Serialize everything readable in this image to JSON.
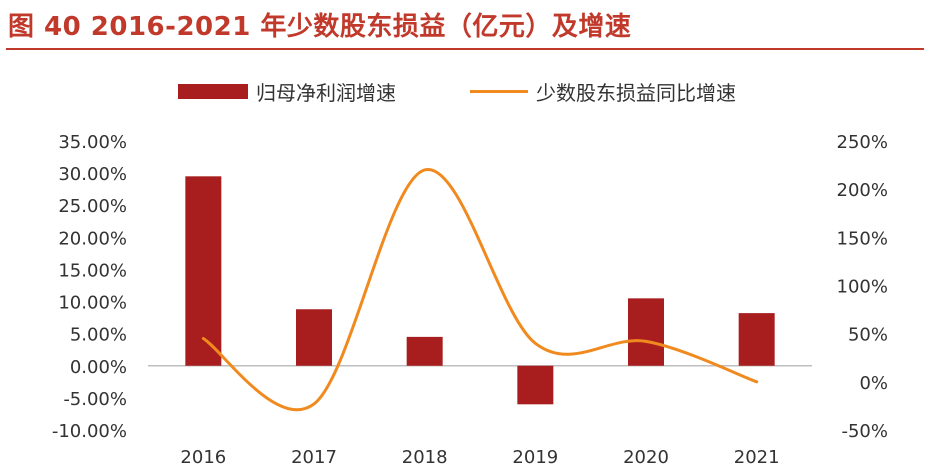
{
  "title": "图 40 2016-2021 年少数股东损益（亿元）及增速",
  "colors": {
    "title": "#c0392b",
    "bar": "#a81e1e",
    "line": "#f08a1f",
    "text": "#333333"
  },
  "chart_data": {
    "type": "bar",
    "categories": [
      "2016",
      "2017",
      "2018",
      "2019",
      "2020",
      "2021"
    ],
    "series": [
      {
        "name": "归母净利润增速",
        "type": "bar",
        "axis": "left",
        "values": [
          29.5,
          8.8,
          4.5,
          -6.0,
          10.5,
          8.2
        ]
      },
      {
        "name": "少数股东损益同比增速",
        "type": "line",
        "axis": "right",
        "smooth": true,
        "values": [
          45,
          -23,
          220,
          40,
          42,
          0
        ]
      }
    ],
    "y_left": {
      "min": -10,
      "max": 35,
      "step": 5,
      "ticks": [
        "35.00%",
        "30.00%",
        "25.00%",
        "20.00%",
        "15.00%",
        "10.00%",
        "5.00%",
        "0.00%",
        "-5.00%",
        "-10.00%"
      ]
    },
    "y_right": {
      "min": -50,
      "max": 250,
      "step": 50,
      "ticks": [
        "250%",
        "200%",
        "150%",
        "100%",
        "50%",
        "0%",
        "-50%"
      ]
    },
    "legend_position": "top-center",
    "grid": false
  }
}
